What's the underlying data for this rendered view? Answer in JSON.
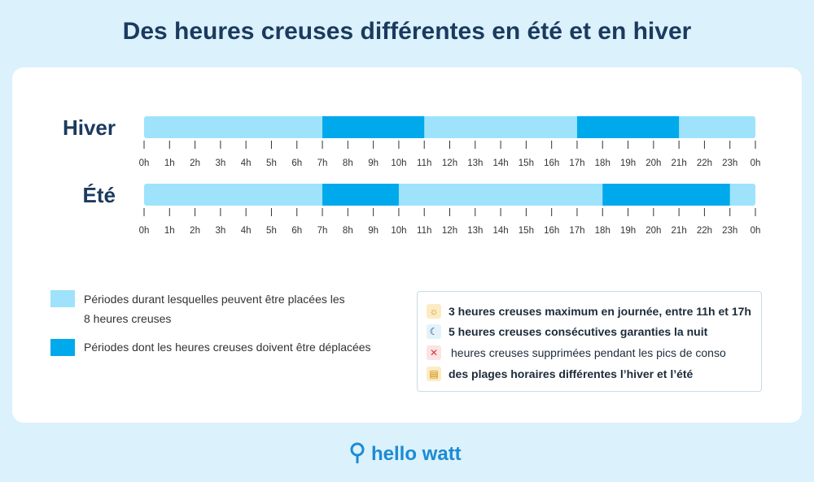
{
  "title": "Des heures creuses différentes en été et en hiver",
  "hour_range": [
    0,
    24
  ],
  "hour_labels": [
    "0h",
    "1h",
    "2h",
    "3h",
    "4h",
    "5h",
    "6h",
    "7h",
    "8h",
    "9h",
    "10h",
    "11h",
    "12h",
    "13h",
    "14h",
    "15h",
    "16h",
    "17h",
    "18h",
    "19h",
    "20h",
    "21h",
    "22h",
    "23h",
    "0h"
  ],
  "colors": {
    "allowed": "#9ee3fb",
    "moved": "#00a9ec"
  },
  "timelines": [
    {
      "label": "Hiver",
      "segments": [
        {
          "start": 7,
          "end": 11
        },
        {
          "start": 17,
          "end": 21
        }
      ]
    },
    {
      "label": "Été",
      "segments": [
        {
          "start": 7,
          "end": 10
        },
        {
          "start": 18,
          "end": 23
        }
      ]
    }
  ],
  "legend": [
    "Périodes durant lesquelles peuvent être placées les 8 heures creuses",
    "Périodes dont les heures creuses doivent être déplacées"
  ],
  "notes": [
    "3 heures creuses maximum en journée, entre 11h et 17h",
    "5 heures creuses consécutives garanties la nuit",
    "heures creuses supprimées pendant les pics de conso",
    "des plages horaires différentes l’hiver et l’été"
  ],
  "brand": "hello watt"
}
